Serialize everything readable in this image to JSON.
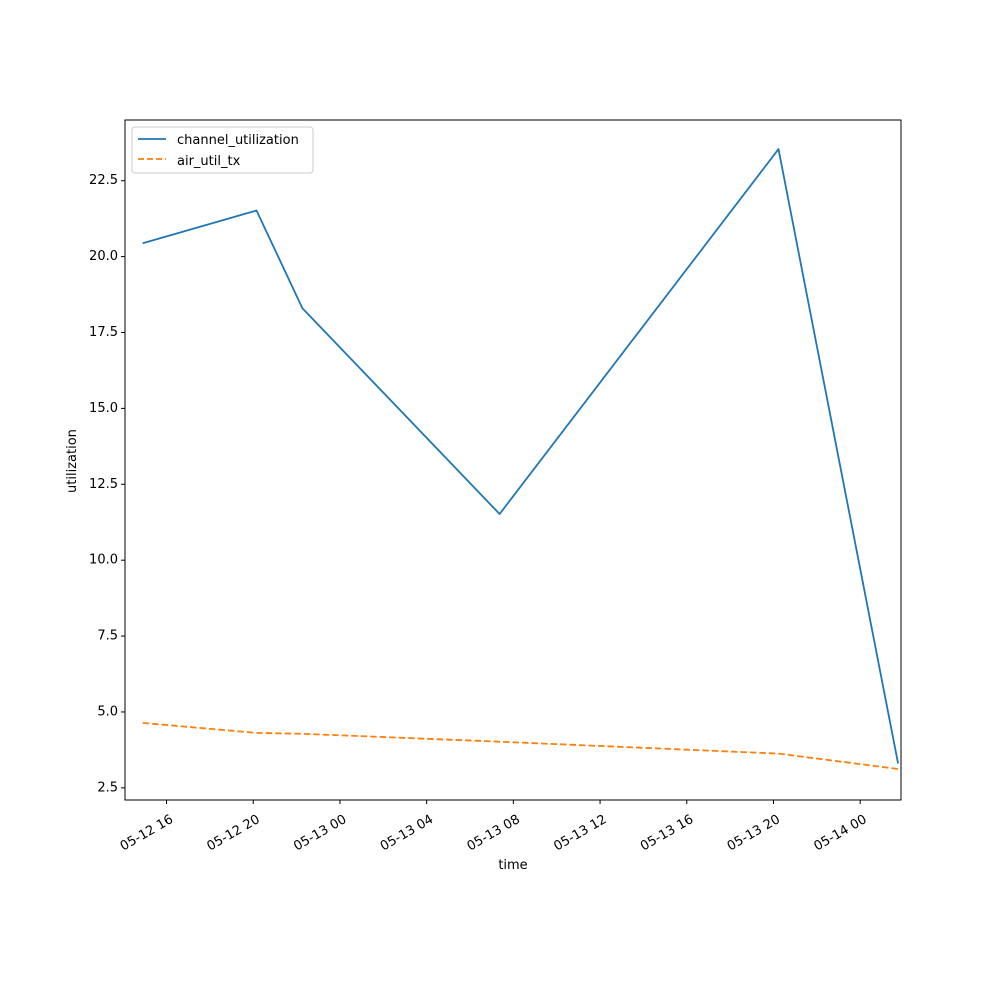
{
  "chart_data": {
    "type": "line",
    "title": "",
    "xlabel": "time",
    "ylabel": "utilization",
    "x_ticks": [
      "05-12 16",
      "05-12 20",
      "05-13 00",
      "05-13 04",
      "05-13 08",
      "05-13 12",
      "05-13 16",
      "05-13 20",
      "05-14 00"
    ],
    "y_ticks": [
      "2.5",
      "5.0",
      "7.5",
      "10.0",
      "12.5",
      "15.0",
      "17.5",
      "20.0",
      "22.5"
    ],
    "xlim": [
      "2024-05-12T14:05",
      "2024-05-14T01:53"
    ],
    "ylim": [
      2.1,
      24.5
    ],
    "grid": false,
    "legend_position": "upper-left",
    "series": [
      {
        "name": "channel_utilization",
        "color": "#1f77b4",
        "style": "solid",
        "points": [
          {
            "x": "2024-05-12T14:54",
            "y": 20.44
          },
          {
            "x": "2024-05-12T20:09",
            "y": 21.52
          },
          {
            "x": "2024-05-12T22:16",
            "y": 18.3
          },
          {
            "x": "2024-05-13T07:22",
            "y": 11.52
          },
          {
            "x": "2024-05-13T20:14",
            "y": 23.54
          },
          {
            "x": "2024-05-14T01:45",
            "y": 3.3
          }
        ]
      },
      {
        "name": "air_util_tx",
        "color": "#ff7f0e",
        "style": "dashed",
        "points": [
          {
            "x": "2024-05-12T14:54",
            "y": 4.64
          },
          {
            "x": "2024-05-12T20:09",
            "y": 4.31
          },
          {
            "x": "2024-05-12T22:16",
            "y": 4.28
          },
          {
            "x": "2024-05-13T07:22",
            "y": 4.02
          },
          {
            "x": "2024-05-13T20:14",
            "y": 3.63
          },
          {
            "x": "2024-05-14T01:45",
            "y": 3.12
          }
        ]
      }
    ]
  }
}
